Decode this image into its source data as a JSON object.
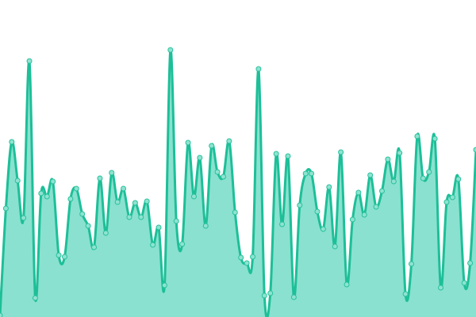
{
  "chart_data": {
    "type": "area",
    "title": "",
    "xlabel": "",
    "ylabel": "",
    "ylim": [
      0,
      400
    ],
    "grid": false,
    "legend": "none",
    "x": [
      0,
      1,
      2,
      3,
      4,
      5,
      6,
      7,
      8,
      9,
      10,
      11,
      12,
      13,
      14,
      15,
      16,
      17,
      18,
      19,
      20,
      21,
      22,
      23,
      24,
      25,
      26,
      27,
      28,
      29,
      30,
      31,
      32,
      33,
      34,
      35,
      36,
      37,
      38,
      39,
      40,
      41,
      42,
      43,
      44,
      45,
      46,
      47,
      48,
      49,
      50,
      51,
      52,
      53,
      54,
      55,
      56,
      57,
      58,
      59,
      60,
      61,
      62,
      63,
      64,
      65,
      66,
      67,
      68,
      69,
      70,
      71,
      72,
      73,
      74,
      75,
      76,
      77,
      78,
      79,
      80,
      81
    ],
    "series": [
      {
        "values": [
          2,
          137,
          221,
          172,
          125,
          323,
          24,
          156,
          152,
          171,
          78,
          76,
          149,
          162,
          130,
          115,
          88,
          175,
          106,
          182,
          145,
          162,
          126,
          144,
          126,
          146,
          91,
          113,
          40,
          337,
          121,
          92,
          220,
          152,
          201,
          115,
          216,
          183,
          177,
          222,
          132,
          75,
          68,
          76,
          313,
          27,
          30,
          206,
          117,
          203,
          25,
          141,
          181,
          181,
          133,
          111,
          164,
          89,
          208,
          41,
          123,
          157,
          129,
          179,
          139,
          159,
          199,
          171,
          207,
          29,
          67,
          228,
          175,
          183,
          225,
          37,
          145,
          151,
          174,
          43,
          68,
          211
        ]
      }
    ],
    "colors": {
      "line": "#1dbf98",
      "fill": "#8ae1cf",
      "marker_fill": "#8ee3d0",
      "marker_stroke": "#27c19c"
    }
  }
}
